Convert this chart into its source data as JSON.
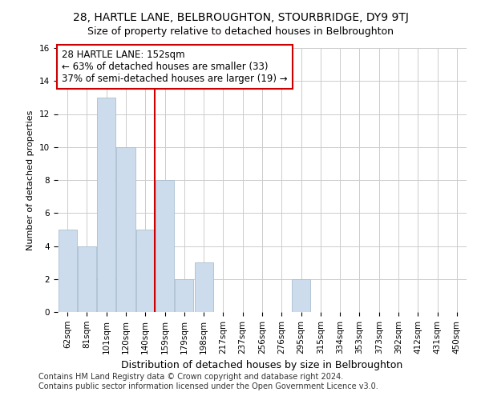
{
  "title": "28, HARTLE LANE, BELBROUGHTON, STOURBRIDGE, DY9 9TJ",
  "subtitle": "Size of property relative to detached houses in Belbroughton",
  "xlabel": "Distribution of detached houses by size in Belbroughton",
  "ylabel": "Number of detached properties",
  "categories": [
    "62sqm",
    "81sqm",
    "101sqm",
    "120sqm",
    "140sqm",
    "159sqm",
    "179sqm",
    "198sqm",
    "217sqm",
    "237sqm",
    "256sqm",
    "276sqm",
    "295sqm",
    "315sqm",
    "334sqm",
    "353sqm",
    "373sqm",
    "392sqm",
    "412sqm",
    "431sqm",
    "450sqm"
  ],
  "values": [
    5,
    4,
    13,
    10,
    5,
    8,
    2,
    3,
    0,
    0,
    0,
    0,
    2,
    0,
    0,
    0,
    0,
    0,
    0,
    0,
    0
  ],
  "bar_color": "#ccdcec",
  "bar_edge_color": "#aabfcf",
  "vline_x": 4.5,
  "vline_color": "#cc0000",
  "annotation_box_text": "28 HARTLE LANE: 152sqm\n← 63% of detached houses are smaller (33)\n37% of semi-detached houses are larger (19) →",
  "annotation_box_color": "#ffffff",
  "annotation_box_edge_color": "#cc0000",
  "ylim": [
    0,
    16
  ],
  "yticks": [
    0,
    2,
    4,
    6,
    8,
    10,
    12,
    14,
    16
  ],
  "background_color": "#ffffff",
  "plot_bg_color": "#ffffff",
  "grid_color": "#cccccc",
  "footer_line1": "Contains HM Land Registry data © Crown copyright and database right 2024.",
  "footer_line2": "Contains public sector information licensed under the Open Government Licence v3.0.",
  "title_fontsize": 10,
  "subtitle_fontsize": 9,
  "xlabel_fontsize": 9,
  "ylabel_fontsize": 8,
  "tick_fontsize": 7.5,
  "annotation_fontsize": 8.5,
  "footer_fontsize": 7
}
